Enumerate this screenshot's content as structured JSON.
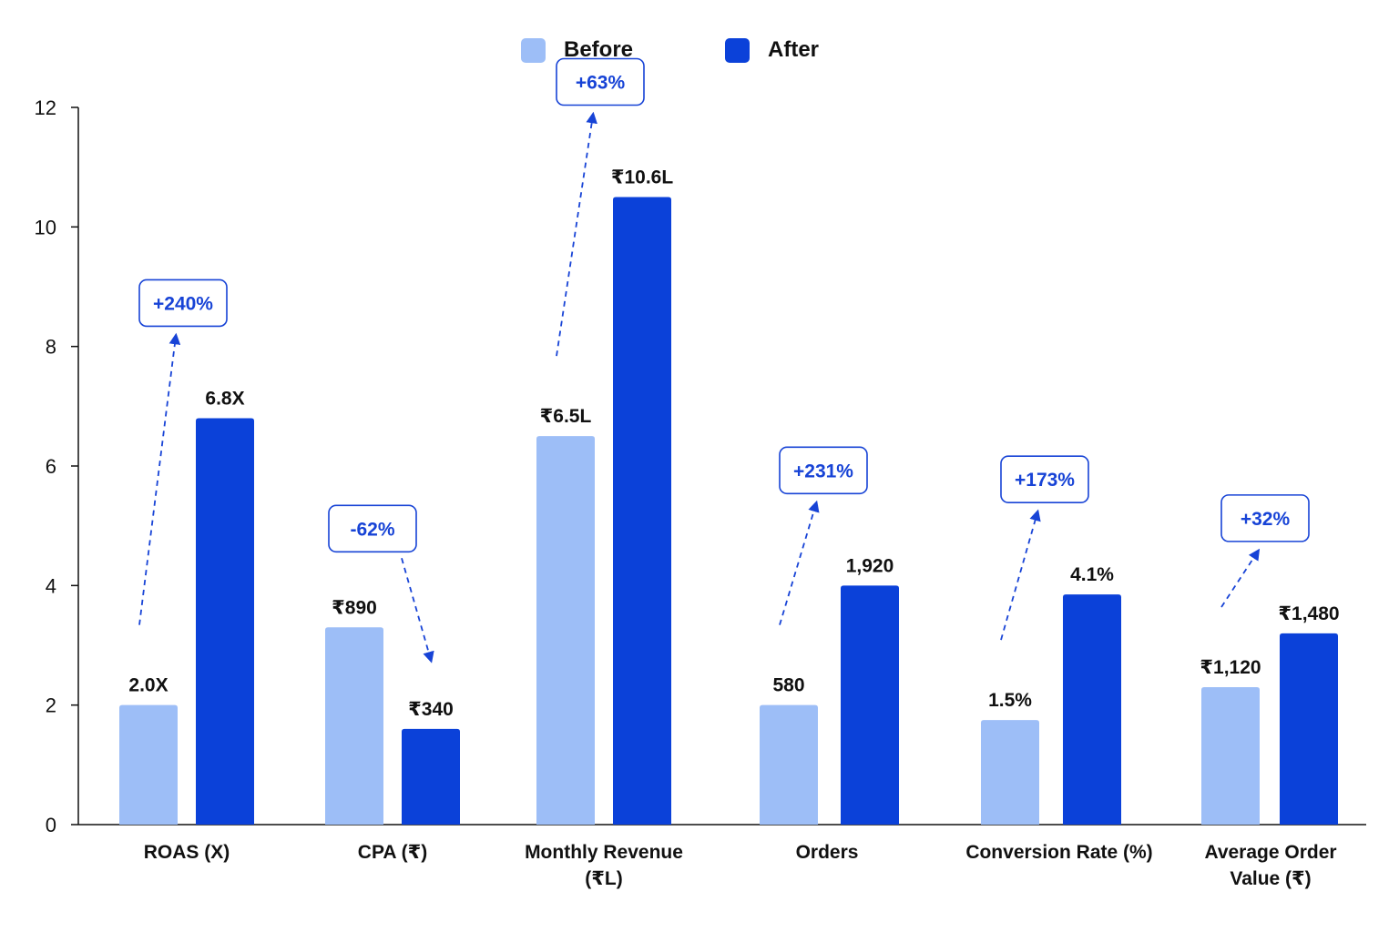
{
  "legend": [
    {
      "label": "Before",
      "color": "#9DBEF7"
    },
    {
      "label": "After",
      "color": "#0B41D9"
    }
  ],
  "chart_data": {
    "type": "bar",
    "categories": [
      [
        "ROAS (X)"
      ],
      [
        "CPA (₹)"
      ],
      [
        "Monthly Revenue",
        "(₹L)"
      ],
      [
        "Orders"
      ],
      [
        "Conversion Rate (%)"
      ],
      [
        "Average Order",
        "Value (₹)"
      ]
    ],
    "series": [
      {
        "name": "Before",
        "color": "#9DBEF7",
        "values": [
          2.0,
          3.3,
          6.5,
          2.0,
          1.75,
          2.3
        ],
        "labels": [
          "2.0X",
          "₹890",
          "₹6.5L",
          "580",
          "1.5%",
          "₹1,120"
        ]
      },
      {
        "name": "After",
        "color": "#0B41D9",
        "values": [
          6.8,
          1.6,
          10.5,
          4.0,
          3.85,
          3.2
        ],
        "labels": [
          "6.8X",
          "₹340",
          "₹10.6L",
          "1,920",
          "4.1%",
          "₹1,480"
        ]
      }
    ],
    "changes": [
      {
        "label": "+240%",
        "direction": "up"
      },
      {
        "label": "-62%",
        "direction": "down"
      },
      {
        "label": "+63%",
        "direction": "up"
      },
      {
        "label": "+231%",
        "direction": "up"
      },
      {
        "label": "+173%",
        "direction": "up"
      },
      {
        "label": "+32%",
        "direction": "up"
      }
    ],
    "ylim": [
      0,
      12
    ],
    "yticks": [
      0,
      2,
      4,
      6,
      8,
      10,
      12
    ],
    "grid": false,
    "legend_position": "top-center",
    "annotation_color": "#1743D6"
  }
}
